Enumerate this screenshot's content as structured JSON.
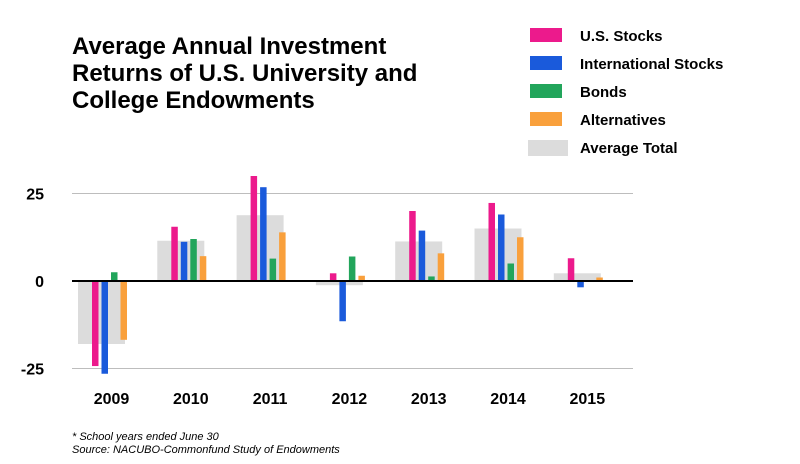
{
  "chart_data": {
    "type": "bar",
    "title_lines": [
      "Average Annual Investment",
      "Returns of U.S. University and",
      "College Endowments"
    ],
    "categories": [
      "2009",
      "2010",
      "2011",
      "2012",
      "2013",
      "2014",
      "2015"
    ],
    "series": [
      {
        "name": "U.S. Stocks",
        "color": "#ec1a8c",
        "values": [
          -24.3,
          15.5,
          30.0,
          2.2,
          20.0,
          22.3,
          6.5
        ]
      },
      {
        "name": "International Stocks",
        "color": "#1a5adb",
        "values": [
          -26.5,
          11.2,
          26.8,
          -11.5,
          14.4,
          19.0,
          -1.8
        ]
      },
      {
        "name": "Bonds",
        "color": "#22a55b",
        "values": [
          2.5,
          12.0,
          6.4,
          7.0,
          1.3,
          5.0,
          0.0
        ]
      },
      {
        "name": "Alternatives",
        "color": "#f9a03c",
        "values": [
          -16.8,
          7.1,
          13.9,
          1.5,
          7.9,
          12.5,
          1.0
        ]
      }
    ],
    "average_total": {
      "name": "Average Total",
      "color": "#dcdcdc",
      "values": [
        -18.0,
        11.5,
        18.8,
        -1.2,
        11.3,
        15.0,
        2.2
      ]
    },
    "yticks": [
      25,
      0,
      -25
    ],
    "ytick_labels": [
      "25",
      "0",
      "-25"
    ],
    "ylim": [
      -25,
      25
    ],
    "legend_position": "top-right",
    "grid": true,
    "notes": [
      "* School years ended June 30",
      "Source: NACUBO-Commonfund Study of Endowments"
    ]
  }
}
